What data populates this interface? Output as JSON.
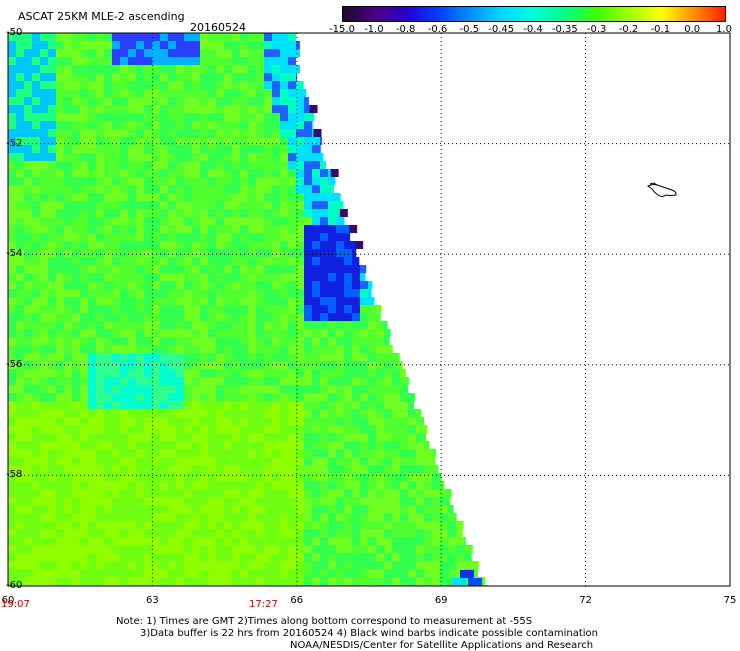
{
  "header": {
    "title": "ASCAT 25KM MLE-2 ascending",
    "date": "20160524"
  },
  "colorbar": {
    "labels": [
      "-15.0",
      "-1.0",
      "-0.8",
      "-0.6",
      "-0.5",
      "-0.45",
      "-0.4",
      "-0.35",
      "-0.3",
      "-0.2",
      "-0.1",
      "0.0",
      "1.0"
    ],
    "colors": [
      "#1a0a30",
      "#4b0082",
      "#2800d0",
      "#0040ff",
      "#0090ff",
      "#00d8ff",
      "#00ffd8",
      "#00ff80",
      "#40ff00",
      "#a0ff00",
      "#ffff00",
      "#ff9000",
      "#ff2000"
    ]
  },
  "map": {
    "lat_labels": [
      "-50",
      "-52",
      "-54",
      "-56",
      "-58",
      "-60"
    ],
    "lon_labels": [
      "60",
      "63",
      "66",
      "69",
      "72",
      "75"
    ],
    "lat_range": [
      -60,
      -50
    ],
    "lon_range": [
      60,
      75
    ],
    "gridlines": true
  },
  "times": {
    "left": "19:07",
    "middle": "17:27"
  },
  "notes": {
    "line1": "Note: 1) Times are GMT 2)Times along bottom correspond to measurement at -55S",
    "line2": "3)Data buffer is 22 hrs from 20160524 4) Black wind barbs indicate possible contamination",
    "line3": "NOAA/NESDIS/Center for Satellite Applications and Research"
  }
}
